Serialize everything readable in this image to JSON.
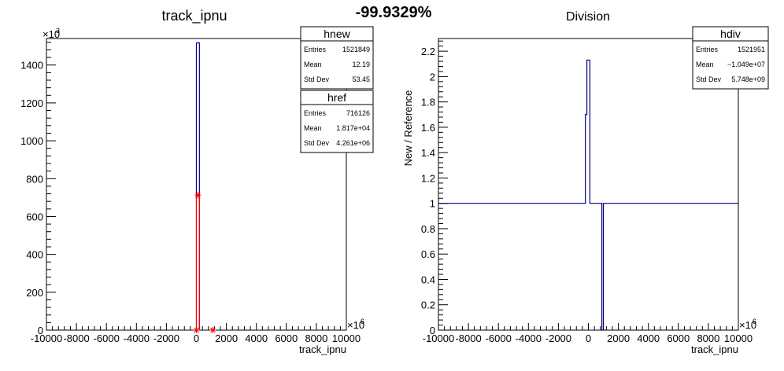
{
  "header": {
    "percent": "-99.9329%"
  },
  "chart_data": [
    {
      "type": "histogram",
      "title": "track_ipnu",
      "xlabel": "track_ipnu",
      "ylabel": "",
      "xlim": [
        -10000,
        10000
      ],
      "x_multiplier": "×10^6",
      "ylim": [
        0,
        1540
      ],
      "y_multiplier": "×10^3",
      "xticks": [
        -10000,
        -8000,
        -6000,
        -4000,
        -2000,
        0,
        2000,
        4000,
        6000,
        8000,
        10000
      ],
      "yticks": [
        0,
        200,
        400,
        600,
        800,
        1000,
        1200,
        1400
      ],
      "series": [
        {
          "name": "hnew",
          "color": "#000080",
          "bins": [
            {
              "x0": 0,
              "x1": 200,
              "value": 1517
            }
          ]
        },
        {
          "name": "href",
          "color": "#ff0000",
          "bins": [
            {
              "x0": 0,
              "x1": 200,
              "value": 713
            },
            {
              "x0": 1000,
              "x1": 1200,
              "value": 3
            }
          ],
          "markers": [
            {
              "x": 0,
              "value": 0
            },
            {
              "x": 100,
              "value": 713
            },
            {
              "x": 1100,
              "value": 0
            }
          ]
        }
      ],
      "stats_boxes": [
        {
          "name": "hnew",
          "rows": [
            [
              "Entries",
              "1521849"
            ],
            [
              "Mean",
              "12.19"
            ],
            [
              "Std Dev",
              "53.45"
            ]
          ]
        },
        {
          "name": "href",
          "rows": [
            [
              "Entries",
              "716126"
            ],
            [
              "Mean",
              "1.817e+04"
            ],
            [
              "Std Dev",
              "4.261e+06"
            ]
          ]
        }
      ]
    },
    {
      "type": "histogram",
      "title": "Division",
      "xlabel": "track_ipnu",
      "ylabel": "New / Reference",
      "xlim": [
        -10000,
        10000
      ],
      "x_multiplier": "×10^6",
      "ylim": [
        0,
        2.3
      ],
      "xticks": [
        -10000,
        -8000,
        -6000,
        -4000,
        -2000,
        0,
        2000,
        4000,
        6000,
        8000,
        10000
      ],
      "yticks": [
        0,
        0.2,
        0.4,
        0.6,
        0.8,
        1,
        1.2,
        1.4,
        1.6,
        1.8,
        2,
        2.2
      ],
      "series": [
        {
          "name": "hdiv",
          "color": "#000080",
          "steps": [
            [
              -10000,
              1
            ],
            [
              -200,
              1
            ],
            [
              -200,
              1.7
            ],
            [
              -100,
              1.7
            ],
            [
              -100,
              2.13
            ],
            [
              100,
              2.13
            ],
            [
              100,
              1
            ],
            [
              900,
              1
            ],
            [
              900,
              0
            ],
            [
              1000,
              0
            ],
            [
              1000,
              1
            ],
            [
              10000,
              1
            ]
          ]
        }
      ],
      "stats_boxes": [
        {
          "name": "hdiv",
          "rows": [
            [
              "Entries",
              "1521951"
            ],
            [
              "Mean",
              "−1.049e+07"
            ],
            [
              "Std Dev",
              "5.748e+09"
            ]
          ]
        }
      ]
    }
  ]
}
